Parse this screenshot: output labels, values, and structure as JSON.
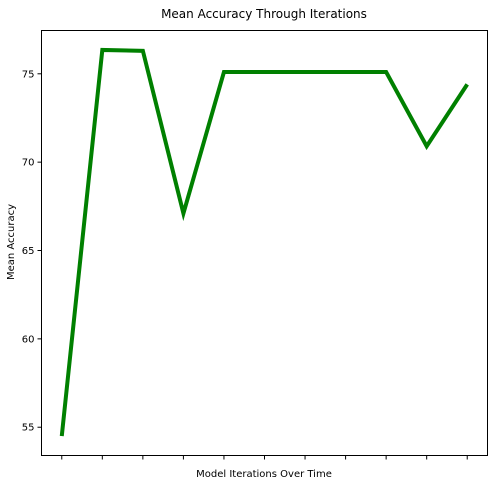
{
  "chart_data": {
    "type": "line",
    "title": "Mean Accuracy Through Iterations",
    "xlabel": "Model Iterations Over Time",
    "ylabel": "Mean Accuracy",
    "x": [
      0,
      1,
      2,
      3,
      4,
      5,
      6,
      7,
      8,
      9,
      10
    ],
    "series": [
      {
        "values": [
          54.5,
          76.35,
          76.3,
          67.1,
          75.1,
          75.1,
          75.1,
          75.1,
          75.1,
          70.9,
          74.4
        ],
        "color": "#008000"
      }
    ],
    "yticks": [
      55,
      60,
      65,
      70,
      75
    ],
    "ylim": [
      53.4,
      77.45
    ],
    "xlim": [
      -0.5,
      10.5
    ],
    "xtick_labels": "none",
    "grid": false,
    "legend": "none"
  }
}
